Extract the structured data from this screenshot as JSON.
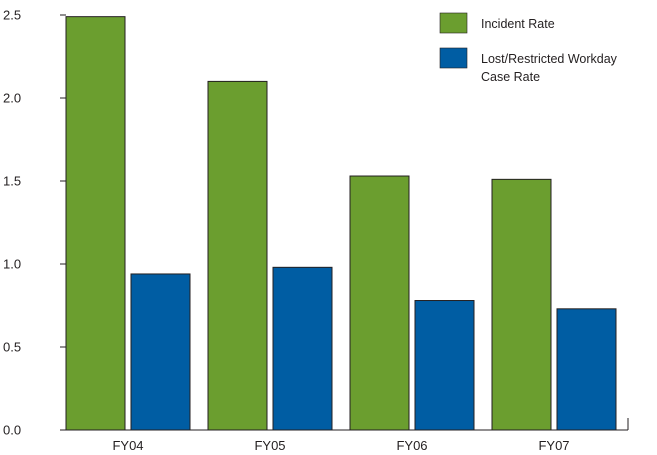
{
  "chart_data": {
    "type": "bar",
    "categories": [
      "FY04",
      "FY05",
      "FY06",
      "FY07"
    ],
    "series": [
      {
        "name": "Incident Rate",
        "values": [
          2.49,
          2.1,
          1.53,
          1.51
        ],
        "color": "#6b9e2f"
      },
      {
        "name": "Lost/Restricted Workday Case Rate",
        "legend_lines": [
          "Lost/Restricted Workday",
          "Case Rate"
        ],
        "values": [
          0.94,
          0.98,
          0.78,
          0.73
        ],
        "color": "#005da3"
      }
    ],
    "ylim": [
      0,
      2.5
    ],
    "yticks": [
      0.0,
      0.5,
      1.0,
      1.5,
      2.0,
      2.5
    ],
    "ytick_labels": [
      "0.0",
      "0.5",
      "1.0",
      "1.5",
      "2.0",
      "2.5"
    ],
    "title": "",
    "xlabel": "",
    "ylabel": "",
    "grid": false,
    "legend_position": "top-right"
  }
}
